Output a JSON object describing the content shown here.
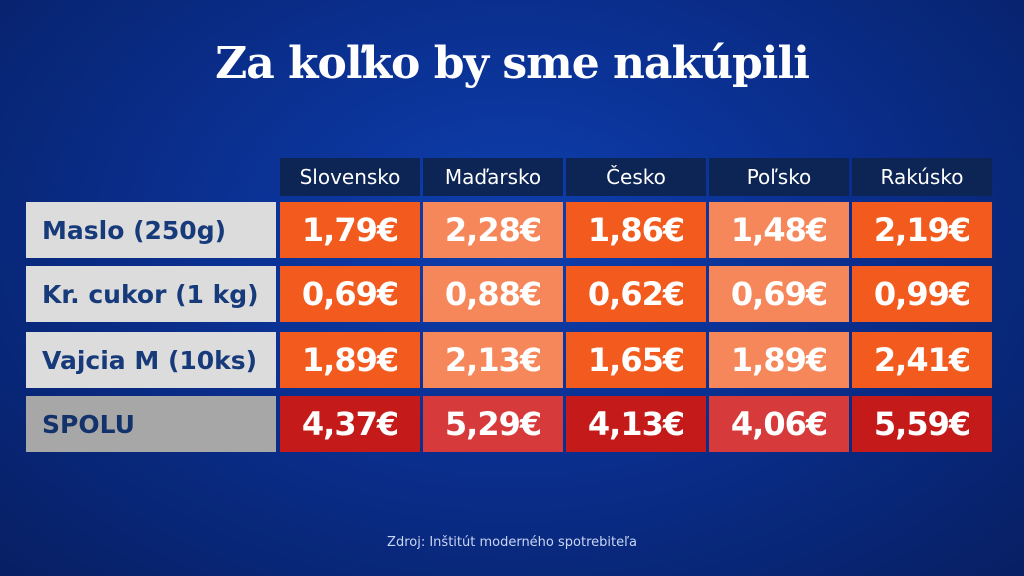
{
  "title": "Za koľko by sme nakúpili",
  "source": "Zdroj: Inštitút moderného spotrebiteľa",
  "colors": {
    "orange": "#f25a1e",
    "light_orange": "#f5875a",
    "red": "#c41a1a",
    "light_red": "#d63a3a",
    "header_bg": "#0d2554",
    "label_bg": "#dcdcdc",
    "total_label_bg": "#a7a7a7"
  },
  "chart_data": {
    "type": "table",
    "title": "Za koľko by sme nakúpili",
    "columns": [
      "Slovensko",
      "Maďarsko",
      "Česko",
      "Poľsko",
      "Rakúsko"
    ],
    "rows": [
      {
        "label": "Maslo (250g)",
        "values": [
          "1,79€",
          "2,28€",
          "1,86€",
          "1,48€",
          "2,19€"
        ]
      },
      {
        "label": "Kr. cukor (1 kg)",
        "values": [
          "0,69€",
          "0,88€",
          "0,62€",
          "0,69€",
          "0,99€"
        ]
      },
      {
        "label": "Vajcia M (10ks)",
        "values": [
          "1,89€",
          "2,13€",
          "1,65€",
          "1,89€",
          "2,41€"
        ]
      },
      {
        "label": "SPOLU",
        "values": [
          "4,37€",
          "5,29€",
          "4,13€",
          "4,06€",
          "5,59€"
        ]
      }
    ]
  }
}
